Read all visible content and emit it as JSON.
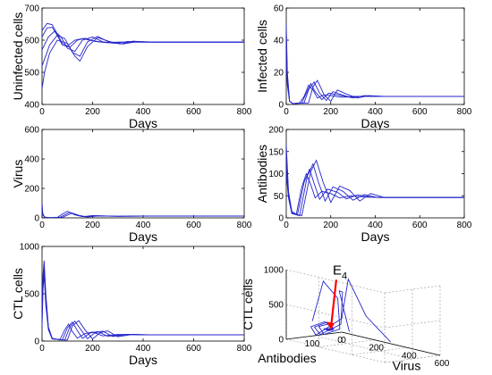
{
  "chart_data": [
    {
      "type": "line",
      "ylabel": "Uninfected cells",
      "xlabel": "Days",
      "xlim": [
        0,
        800
      ],
      "ylim": [
        400,
        700
      ],
      "xticks": [
        0,
        200,
        400,
        600,
        800
      ],
      "yticks": [
        400,
        500,
        600,
        700
      ],
      "colors": {
        "series": "#2424cc"
      },
      "series": [
        {
          "x": [
            0,
            20,
            40,
            60,
            80,
            100,
            130,
            160,
            200,
            250,
            300,
            400,
            500,
            600,
            800
          ],
          "y": [
            630,
            652,
            648,
            620,
            590,
            582,
            600,
            605,
            598,
            593,
            594,
            594,
            594,
            594,
            594
          ]
        },
        {
          "x": [
            0,
            20,
            40,
            60,
            80,
            110,
            140,
            170,
            210,
            260,
            320,
            400,
            500,
            600,
            800
          ],
          "y": [
            610,
            638,
            640,
            615,
            585,
            578,
            600,
            606,
            596,
            592,
            594,
            594,
            594,
            594,
            594
          ]
        },
        {
          "x": [
            0,
            25,
            50,
            75,
            100,
            130,
            160,
            200,
            240,
            290,
            340,
            400,
            500,
            600,
            800
          ],
          "y": [
            570,
            610,
            628,
            610,
            575,
            565,
            600,
            610,
            595,
            590,
            596,
            594,
            594,
            594,
            594
          ]
        },
        {
          "x": [
            0,
            30,
            60,
            90,
            120,
            150,
            180,
            220,
            260,
            310,
            360,
            420,
            500,
            600,
            800
          ],
          "y": [
            520,
            585,
            615,
            605,
            562,
            550,
            595,
            612,
            596,
            588,
            597,
            594,
            594,
            594,
            594
          ]
        },
        {
          "x": [
            0,
            10,
            30,
            60,
            100,
            130,
            150,
            180,
            220,
            270,
            320,
            380,
            450,
            600,
            800
          ],
          "y": [
            450,
            500,
            560,
            600,
            590,
            550,
            535,
            580,
            608,
            595,
            588,
            596,
            594,
            594,
            594
          ]
        }
      ]
    },
    {
      "type": "line",
      "ylabel": "Infected cells",
      "xlabel": "Days",
      "xlim": [
        0,
        800
      ],
      "ylim": [
        0,
        60
      ],
      "xticks": [
        0,
        200,
        400,
        600,
        800
      ],
      "yticks": [
        0,
        20,
        40,
        60
      ],
      "colors": {
        "series": "#2424cc"
      },
      "series": [
        {
          "x": [
            0,
            5,
            15,
            30,
            60,
            80,
            100,
            120,
            140,
            170,
            200,
            250,
            300,
            400,
            600,
            800
          ],
          "y": [
            50,
            20,
            2,
            0.5,
            1,
            5,
            12,
            9,
            4,
            6,
            5.5,
            4.5,
            5,
            5,
            5,
            5
          ]
        },
        {
          "x": [
            0,
            5,
            15,
            30,
            70,
            90,
            110,
            130,
            160,
            190,
            230,
            280,
            330,
            400,
            600,
            800
          ],
          "y": [
            45,
            18,
            2,
            0.5,
            1,
            7,
            13,
            8,
            3,
            7,
            6,
            4.5,
            5,
            5,
            5,
            5
          ]
        },
        {
          "x": [
            0,
            5,
            15,
            30,
            80,
            100,
            125,
            150,
            180,
            210,
            250,
            300,
            350,
            420,
            600,
            800
          ],
          "y": [
            35,
            15,
            2,
            0.5,
            1,
            9,
            14,
            7,
            2.5,
            8,
            6,
            4,
            5.5,
            5,
            5,
            5
          ]
        },
        {
          "x": [
            0,
            5,
            15,
            30,
            100,
            120,
            140,
            170,
            200,
            230,
            270,
            320,
            370,
            440,
            600,
            800
          ],
          "y": [
            28,
            12,
            2,
            0.5,
            1,
            11,
            15,
            6,
            2,
            9,
            6.5,
            4,
            5.5,
            5,
            5,
            5
          ]
        }
      ]
    },
    {
      "type": "line",
      "ylabel": "Virus",
      "xlabel": "Days",
      "xlim": [
        0,
        800
      ],
      "ylim": [
        0,
        600
      ],
      "xticks": [
        0,
        200,
        400,
        600,
        800
      ],
      "yticks": [
        0,
        200,
        400,
        600
      ],
      "colors": {
        "series": "#2424cc"
      },
      "series": [
        {
          "x": [
            0,
            3,
            10,
            30,
            60,
            80,
            100,
            130,
            160,
            200,
            300,
            400,
            600,
            800
          ],
          "y": [
            100,
            30,
            5,
            1,
            3,
            25,
            45,
            20,
            8,
            15,
            10,
            12,
            12,
            12
          ]
        },
        {
          "x": [
            0,
            3,
            10,
            30,
            70,
            90,
            110,
            140,
            170,
            210,
            300,
            400,
            600,
            800
          ],
          "y": [
            80,
            25,
            5,
            1,
            3,
            20,
            38,
            18,
            7,
            14,
            11,
            12,
            12,
            12
          ]
        },
        {
          "x": [
            0,
            3,
            10,
            30,
            80,
            100,
            120,
            150,
            180,
            220,
            300,
            400,
            600,
            800
          ],
          "y": [
            60,
            20,
            5,
            1,
            3,
            18,
            32,
            15,
            6,
            13,
            11,
            12,
            12,
            12
          ]
        }
      ]
    },
    {
      "type": "line",
      "ylabel": "Antibodies",
      "xlabel": "Days",
      "xlim": [
        0,
        800
      ],
      "ylim": [
        0,
        200
      ],
      "xticks": [
        0,
        200,
        400,
        600,
        800
      ],
      "yticks": [
        0,
        50,
        100,
        150,
        200
      ],
      "colors": {
        "series": "#2424cc"
      },
      "series": [
        {
          "x": [
            0,
            10,
            25,
            45,
            70,
            90,
            110,
            130,
            160,
            200,
            240,
            290,
            350,
            420,
            500,
            600,
            800
          ],
          "y": [
            165,
            60,
            15,
            8,
            70,
            100,
            75,
            45,
            60,
            55,
            45,
            50,
            47,
            46,
            46,
            46,
            46
          ]
        },
        {
          "x": [
            0,
            10,
            25,
            50,
            80,
            105,
            125,
            150,
            185,
            230,
            270,
            320,
            380,
            440,
            520,
            600,
            800
          ],
          "y": [
            150,
            55,
            12,
            6,
            80,
            110,
            78,
            42,
            65,
            58,
            43,
            52,
            47,
            46,
            46,
            46,
            46
          ]
        },
        {
          "x": [
            0,
            10,
            25,
            60,
            95,
            120,
            145,
            175,
            210,
            255,
            300,
            350,
            410,
            470,
            540,
            620,
            800
          ],
          "y": [
            120,
            50,
            10,
            5,
            95,
            122,
            80,
            38,
            70,
            60,
            40,
            53,
            46,
            46,
            46,
            46,
            46
          ]
        },
        {
          "x": [
            0,
            10,
            25,
            70,
            110,
            135,
            165,
            200,
            240,
            285,
            330,
            380,
            440,
            500,
            560,
            640,
            800
          ],
          "y": [
            100,
            45,
            10,
            5,
            105,
            130,
            82,
            35,
            72,
            62,
            38,
            55,
            46,
            46,
            46,
            46,
            46
          ]
        }
      ]
    },
    {
      "type": "line",
      "ylabel": "CTL cells",
      "xlabel": "Days",
      "xlim": [
        0,
        800
      ],
      "ylim": [
        0,
        1000
      ],
      "xticks": [
        0,
        200,
        400,
        600,
        800
      ],
      "yticks": [
        0,
        500,
        1000
      ],
      "colors": {
        "series": "#2424cc"
      },
      "series": [
        {
          "x": [
            0,
            4,
            8,
            15,
            25,
            40,
            70,
            90,
            105,
            120,
            140,
            170,
            200,
            240,
            300,
            400,
            600,
            800
          ],
          "y": [
            300,
            700,
            850,
            500,
            150,
            30,
            10,
            120,
            180,
            100,
            30,
            80,
            95,
            55,
            70,
            65,
            65,
            65
          ]
        },
        {
          "x": [
            0,
            4,
            8,
            15,
            25,
            40,
            80,
            100,
            120,
            140,
            160,
            190,
            220,
            260,
            320,
            400,
            600,
            800
          ],
          "y": [
            250,
            650,
            800,
            460,
            140,
            28,
            10,
            140,
            200,
            110,
            28,
            85,
            100,
            50,
            70,
            65,
            65,
            65
          ]
        },
        {
          "x": [
            0,
            4,
            8,
            15,
            25,
            40,
            90,
            110,
            130,
            155,
            180,
            210,
            240,
            280,
            340,
            420,
            600,
            800
          ],
          "y": [
            200,
            600,
            750,
            420,
            130,
            25,
            10,
            150,
            210,
            115,
            25,
            88,
            105,
            48,
            72,
            65,
            65,
            65
          ]
        },
        {
          "x": [
            0,
            4,
            8,
            15,
            25,
            40,
            100,
            120,
            145,
            170,
            200,
            230,
            260,
            300,
            360,
            440,
            600,
            800
          ],
          "y": [
            150,
            550,
            700,
            380,
            120,
            22,
            10,
            160,
            215,
            120,
            22,
            90,
            108,
            45,
            72,
            65,
            65,
            65
          ]
        }
      ]
    },
    {
      "type": "line",
      "projection": "3d",
      "xlabel": "Virus",
      "ylabel": "Antibodies",
      "zlabel": "CTL cells",
      "xticks": [
        0,
        200,
        400,
        600
      ],
      "yticks": [
        0,
        100
      ],
      "zticks": [
        0,
        500,
        1000
      ],
      "xlim": [
        0,
        600
      ],
      "ylim": [
        0,
        200
      ],
      "zlim": [
        0,
        1000
      ],
      "grid": true,
      "annotation": {
        "label": "E",
        "subscript": "4",
        "color": "#ff0000",
        "point": {
          "virus": 12,
          "antibodies": 46,
          "ctl": 65
        }
      },
      "colors": {
        "series": "#2424cc"
      },
      "series": [
        {
          "virus": [
            100,
            40,
            10,
            2,
            10,
            30,
            45,
            20,
            10,
            15,
            12,
            12
          ],
          "antibodies": [
            165,
            90,
            20,
            8,
            70,
            100,
            75,
            45,
            60,
            50,
            47,
            46
          ],
          "ctl": [
            300,
            800,
            500,
            50,
            10,
            150,
            180,
            60,
            80,
            60,
            65,
            65
          ]
        },
        {
          "virus": [
            300,
            120,
            30,
            5,
            3,
            20,
            38,
            18,
            9,
            14,
            12,
            12
          ],
          "antibodies": [
            150,
            80,
            15,
            6,
            80,
            110,
            78,
            42,
            65,
            52,
            47,
            46
          ],
          "ctl": [
            250,
            700,
            600,
            120,
            10,
            140,
            200,
            70,
            85,
            58,
            65,
            65
          ]
        },
        {
          "virus": [
            500,
            250,
            60,
            8,
            3,
            18,
            32,
            15,
            8,
            13,
            12,
            12
          ],
          "antibodies": [
            120,
            60,
            12,
            5,
            95,
            122,
            80,
            38,
            70,
            55,
            47,
            46
          ],
          "ctl": [
            200,
            400,
            800,
            200,
            10,
            150,
            210,
            80,
            90,
            56,
            65,
            65
          ]
        }
      ]
    }
  ]
}
